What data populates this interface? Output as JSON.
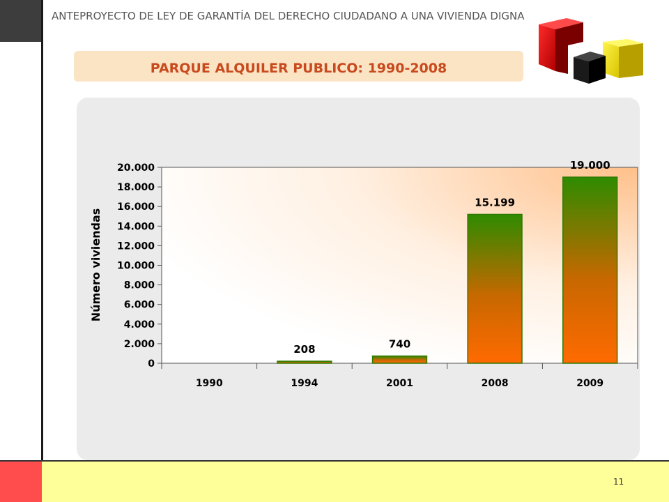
{
  "header": {
    "text": "ANTEPROYECTO DE LEY DE GARANTÍA DEL DERECHO CIUDADANO A UNA VIVIENDA DIGNA"
  },
  "slide": {
    "title": "PARQUE ALQUILER PUBLICO: 1990-2008",
    "page_number": "11"
  },
  "colors": {
    "title": "#c84a1e",
    "bar_top": "#2e8b00",
    "bar_bottom": "#ff6a00",
    "logo_red": "#e01010",
    "logo_yellow": "#f5e600",
    "logo_black": "#111111"
  },
  "chart_data": {
    "type": "bar",
    "categories": [
      "1990",
      "1994",
      "2001",
      "2008",
      "2009"
    ],
    "values": [
      0,
      208,
      740,
      15199,
      19000
    ],
    "value_labels": [
      "",
      "208",
      "740",
      "15.199",
      "19.000"
    ],
    "ylabel": "Número viviendas",
    "xlabel": "",
    "ylim": [
      0,
      20000
    ],
    "yticks": [
      0,
      2000,
      4000,
      6000,
      8000,
      10000,
      12000,
      14000,
      16000,
      18000,
      20000
    ],
    "ytick_labels": [
      "0",
      "2.000",
      "4.000",
      "6.000",
      "8.000",
      "10.000",
      "12.000",
      "14.000",
      "16.000",
      "18.000",
      "20.000"
    ],
    "grid": false,
    "legend": "none"
  }
}
